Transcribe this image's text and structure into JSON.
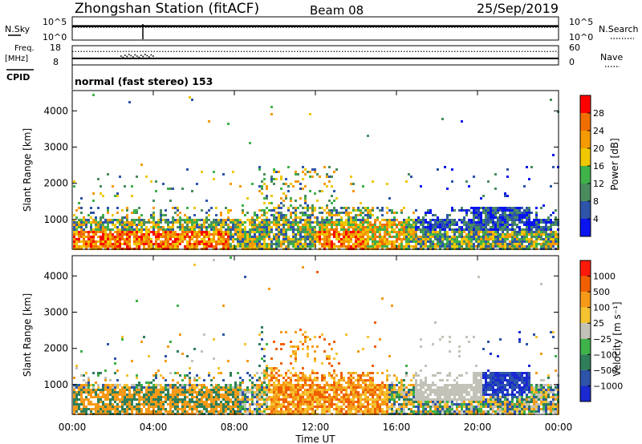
{
  "header": {
    "station": "Zhongshan Station (fitACF)",
    "beam": "Beam 08",
    "date": "25/Sep/2019"
  },
  "panel_noise": {
    "left_label": "N.Sky",
    "left_ticks": [
      "10^5",
      "10^0"
    ],
    "right_ticks": [
      "10^5",
      "10^0"
    ],
    "right_label": "N.Search",
    "nsky_level": 0.6,
    "nsearch_level": 0.55
  },
  "panel_freq": {
    "left_label_1": "Freq.",
    "left_label_2": "[MHz]",
    "left_ticks": [
      "18",
      "8"
    ],
    "right_ticks": [
      "60",
      "0"
    ],
    "right_label": "Nave",
    "freq_mhz": 11.4,
    "nave_level": 0.7
  },
  "cpid": {
    "label": "CPID",
    "value": "normal (fast stereo) 153"
  },
  "colors": {
    "power": [
      "#0a14f0",
      "#2d54a8",
      "#4a8c5e",
      "#3fb24a",
      "#f0c800",
      "#f59a00",
      "#f06e00",
      "#ff0000"
    ],
    "velocity": [
      "#ff1a0a",
      "#f06000",
      "#f59a18",
      "#f5c230",
      "#c2c2b8",
      "#3fb24a",
      "#2f7f5a",
      "#2d54a8",
      "#1a2ad0"
    ],
    "ground_scatter": "#9e9e9e",
    "frame": "#000000"
  },
  "chart_data": [
    {
      "type": "heatmap",
      "name": "power",
      "ylabel": "Slant Range [km]",
      "yticks": [
        "1000",
        "2000",
        "3000",
        "4000"
      ],
      "ylim": [
        180,
        4560
      ],
      "xlim_hours": [
        0,
        24
      ],
      "colorbar_label": "Power [dB]",
      "colorbar_ticks": [
        "4",
        "8",
        "12",
        "16",
        "20",
        "24",
        "28"
      ],
      "colorbar_range": [
        0,
        32
      ]
    },
    {
      "type": "heatmap",
      "name": "velocity",
      "ylabel": "Slant Range [km]",
      "yticks": [
        "1000",
        "2000",
        "3000",
        "4000"
      ],
      "ylim": [
        180,
        4560
      ],
      "xlim_hours": [
        0,
        24
      ],
      "colorbar_label": "Velocity [m s⁻¹]",
      "colorbar_ticks": [
        "1000",
        "500",
        "100",
        "25",
        "−25",
        "−100",
        "−500",
        "−1000"
      ]
    }
  ],
  "xaxis": {
    "ticks": [
      "00:00",
      "04:00",
      "08:00",
      "12:00",
      "16:00",
      "20:00",
      "00:00"
    ],
    "label": "Time UT"
  }
}
